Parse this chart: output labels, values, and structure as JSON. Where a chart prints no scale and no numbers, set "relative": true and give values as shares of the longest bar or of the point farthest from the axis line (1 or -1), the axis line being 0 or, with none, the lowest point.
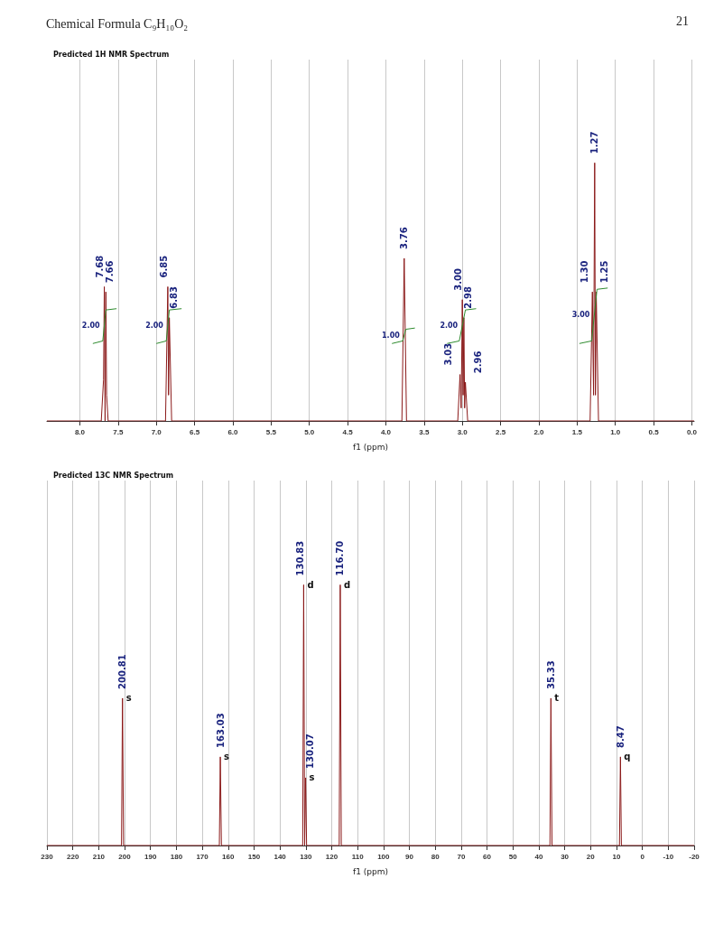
{
  "chart_data": [
    {
      "type": "line",
      "title": "Chemical Formula C₉H₁₀O₂",
      "subtitle": "Predicted 1H NMR Spectrum",
      "xlabel": "f1 (ppm)",
      "relative": true,
      "grid": "x",
      "xlim": [
        8.43,
        -0.03
      ],
      "xticks": [
        {
          "value": 8,
          "label": "8.0"
        },
        {
          "value": 7.5,
          "label": "7.5"
        },
        {
          "value": 7,
          "label": "7.0"
        },
        {
          "value": 6.5,
          "label": "6.5"
        },
        {
          "value": 6,
          "label": "6.0"
        },
        {
          "value": 5.5,
          "label": "5.5"
        },
        {
          "value": 5,
          "label": "5.0"
        },
        {
          "value": 4.5,
          "label": "4.5"
        },
        {
          "value": 4,
          "label": "4.0"
        },
        {
          "value": 3.5,
          "label": "3.5"
        },
        {
          "value": 3,
          "label": "3.0"
        },
        {
          "value": 2.5,
          "label": "2.5"
        },
        {
          "value": 2,
          "label": "2.0"
        },
        {
          "value": 1.5,
          "label": "1.5"
        },
        {
          "value": 1,
          "label": "1.0"
        },
        {
          "value": 0.5,
          "label": "0.5"
        },
        {
          "value": 0,
          "label": "0.0"
        }
      ],
      "series": [
        {
          "color": "#8b1a1a",
          "x": [
            8.43,
            7.72,
            7.69,
            7.68,
            7.67,
            7.66,
            7.65,
            7.63,
            6.88,
            6.85,
            6.84,
            6.83,
            6.8,
            3.79,
            3.76,
            3.73,
            3.06,
            3.03,
            3.015,
            3.0,
            2.99,
            2.98,
            2.97,
            2.96,
            2.93,
            1.33,
            1.3,
            1.285,
            1.27,
            1.26,
            1.25,
            1.22,
            -0.03
          ],
          "values": [
            0,
            0,
            0.16,
            0.52,
            0,
            0.5,
            0.1,
            0,
            0,
            0.52,
            0.1,
            0.4,
            0,
            0,
            0.63,
            0,
            0,
            0.18,
            0.05,
            0.47,
            0.1,
            0.4,
            0.05,
            0.15,
            0,
            0,
            0.5,
            0.1,
            1,
            0.1,
            0.5,
            0,
            0
          ]
        },
        {
          "color": "#2e8b2e",
          "x": [
            7.83,
            7.7,
            7.66,
            7.52,
            7.3,
            7.0,
            6.87,
            6.83,
            6.67,
            5.0,
            3.92,
            3.78,
            3.74,
            3.62,
            3.4,
            3.2,
            3.04,
            2.96,
            2.82,
            2.0,
            1.47,
            1.31,
            1.24,
            1.1
          ],
          "values": [
            0.3,
            0.31,
            0.43,
            0.435,
            null,
            0.3,
            0.31,
            0.43,
            0.435,
            null,
            0.3,
            0.31,
            0.355,
            0.36,
            null,
            0.3,
            0.31,
            0.43,
            0.435,
            null,
            0.3,
            0.31,
            0.51,
            0.515
          ]
        }
      ],
      "annotations": [
        "21",
        {
          "text": "7.68",
          "x": 7.68,
          "y": 0.52
        },
        {
          "text": "7.66",
          "x": 7.66,
          "y": 0.5
        },
        {
          "text": "6.85",
          "x": 6.85,
          "y": 0.52
        },
        {
          "text": "6.83",
          "x": 6.83,
          "y": 0.4
        },
        {
          "text": "3.76",
          "x": 3.76,
          "y": 0.63
        },
        {
          "text": "3.03",
          "x": 3.03,
          "y": 0.18
        },
        {
          "text": "3.00",
          "x": 3.0,
          "y": 0.47
        },
        {
          "text": "2.98",
          "x": 2.98,
          "y": 0.4
        },
        {
          "text": "2.96",
          "x": 2.96,
          "y": 0.15
        },
        {
          "text": "1.30",
          "x": 1.3,
          "y": 0.5
        },
        {
          "text": "1.27",
          "x": 1.27,
          "y": 1
        },
        {
          "text": "1.25",
          "x": 1.25,
          "y": 0.5
        },
        {
          "text": "2.00",
          "x": 7.68,
          "y": 0.37
        },
        {
          "text": "2.00",
          "x": 6.85,
          "y": 0.37
        },
        {
          "text": "1.00",
          "x": 3.76,
          "y": 0.33
        },
        {
          "text": "2.00",
          "x": 3.0,
          "y": 0.37
        },
        {
          "text": "3.00",
          "x": 1.275,
          "y": 0.41
        }
      ]
    },
    {
      "type": "line",
      "subtitle": "Predicted 13C NMR Spectrum",
      "xlabel": "f1 (ppm)",
      "relative": true,
      "grid": "x",
      "xlim": [
        230,
        -20
      ],
      "xticks": [
        230,
        220,
        210,
        200,
        190,
        180,
        170,
        160,
        150,
        140,
        130,
        120,
        110,
        100,
        90,
        80,
        70,
        60,
        50,
        40,
        30,
        20,
        10,
        0,
        -10,
        -20
      ],
      "series": [
        {
          "color": "#8b1a1a",
          "x": [
            230,
            201.2,
            200.81,
            200.4,
            163.4,
            163.03,
            162.6,
            131.2,
            130.83,
            130.45,
            130.07,
            129.7,
            117.1,
            116.7,
            116.3,
            35.7,
            35.33,
            34.9,
            8.85,
            8.47,
            8.1,
            -20
          ],
          "values": [
            0,
            0,
            0.565,
            0,
            0,
            0.34,
            0,
            0,
            1,
            0,
            0.26,
            0,
            0,
            1,
            0,
            0,
            0.565,
            0,
            0,
            0.34,
            0,
            0
          ]
        }
      ],
      "annotations": [
        {
          "text": "200.81",
          "x": 200.81,
          "y": 0.565
        },
        {
          "text": "163.03",
          "x": 163.03,
          "y": 0.34
        },
        {
          "text": "130.83",
          "x": 130.83,
          "y": 1
        },
        {
          "text": "130.07",
          "x": 130.07,
          "y": 0.26
        },
        {
          "text": "116.70",
          "x": 116.7,
          "y": 1
        },
        {
          "text": "35.33",
          "x": 35.33,
          "y": 0.565
        },
        {
          "text": "8.47",
          "x": 8.47,
          "y": 0.34
        },
        {
          "text": "s",
          "x": 200.81,
          "y": 0.565
        },
        {
          "text": "s",
          "x": 163.03,
          "y": 0.34
        },
        {
          "text": "d",
          "x": 130.83,
          "y": 1
        },
        {
          "text": "s",
          "x": 130.07,
          "y": 0.26
        },
        {
          "text": "d",
          "x": 116.7,
          "y": 1
        },
        {
          "text": "t",
          "x": 35.33,
          "y": 0.565
        },
        {
          "text": "q",
          "x": 8.47,
          "y": 0.34
        }
      ]
    }
  ]
}
